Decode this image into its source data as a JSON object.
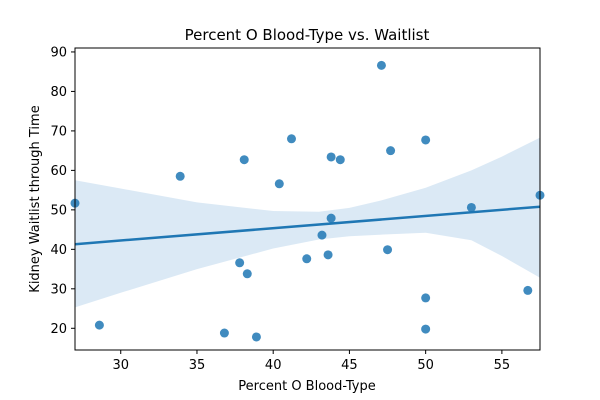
{
  "chart_data": {
    "type": "scatter",
    "title": "Percent O Blood-Type vs. Waitlist",
    "xlabel": "Percent O Blood-Type",
    "ylabel": "Kidney Waitlist through Time",
    "xlim": [
      27,
      57.5
    ],
    "ylim": [
      14.5,
      91
    ],
    "x_ticks": [
      30,
      35,
      40,
      45,
      50,
      55
    ],
    "y_ticks": [
      20,
      30,
      40,
      50,
      60,
      70,
      80,
      90
    ],
    "grid": false,
    "colors": {
      "points": "#1f77b4",
      "regression_line": "#1f77b4",
      "confidence_band": "#a6c8e6"
    },
    "points": [
      {
        "x": 27.0,
        "y": 51.7
      },
      {
        "x": 28.6,
        "y": 20.8
      },
      {
        "x": 33.9,
        "y": 58.5
      },
      {
        "x": 36.8,
        "y": 18.8
      },
      {
        "x": 37.8,
        "y": 36.6
      },
      {
        "x": 38.1,
        "y": 62.7
      },
      {
        "x": 38.3,
        "y": 33.8
      },
      {
        "x": 38.9,
        "y": 17.8
      },
      {
        "x": 40.4,
        "y": 56.6
      },
      {
        "x": 41.2,
        "y": 68.0
      },
      {
        "x": 42.2,
        "y": 37.6
      },
      {
        "x": 43.2,
        "y": 43.6
      },
      {
        "x": 43.6,
        "y": 38.6
      },
      {
        "x": 43.8,
        "y": 47.9
      },
      {
        "x": 43.8,
        "y": 63.4
      },
      {
        "x": 44.4,
        "y": 62.7
      },
      {
        "x": 47.1,
        "y": 86.6
      },
      {
        "x": 47.5,
        "y": 39.9
      },
      {
        "x": 47.7,
        "y": 65.0
      },
      {
        "x": 50.0,
        "y": 67.7
      },
      {
        "x": 50.0,
        "y": 27.7
      },
      {
        "x": 50.0,
        "y": 19.8
      },
      {
        "x": 53.0,
        "y": 50.6
      },
      {
        "x": 56.7,
        "y": 29.6
      },
      {
        "x": 57.5,
        "y": 53.7
      }
    ],
    "regression": {
      "x": [
        27,
        57.5
      ],
      "y": [
        41.3,
        50.8
      ]
    },
    "confidence_band": {
      "x": [
        27,
        30,
        35,
        40,
        43,
        45,
        47,
        50,
        53,
        55,
        57.5
      ],
      "upper": [
        57.5,
        55.4,
        51.9,
        49.7,
        49.5,
        50.5,
        52.3,
        55.6,
        60.0,
        63.5,
        68.3
      ],
      "lower": [
        25.3,
        29.0,
        35.0,
        40.2,
        42.5,
        43.3,
        43.7,
        44.2,
        42.3,
        38.3,
        32.8
      ]
    }
  }
}
